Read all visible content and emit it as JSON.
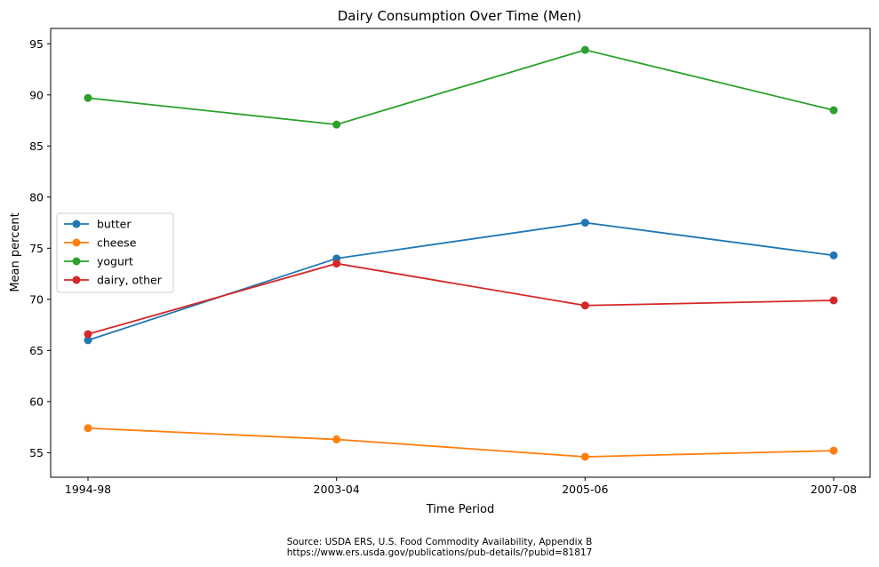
{
  "chart_data": {
    "type": "line",
    "title": "Dairy Consumption Over Time (Men)",
    "xlabel": "Time Period",
    "ylabel": "Mean percent",
    "categories": [
      "1994-98",
      "2003-04",
      "2005-06",
      "2007-08"
    ],
    "yticks": [
      55,
      60,
      65,
      70,
      75,
      80,
      85,
      90,
      95
    ],
    "ylim": [
      52.6,
      96.5
    ],
    "grid": false,
    "legend_position": "center-left",
    "series": [
      {
        "name": "butter",
        "color": "#1f77b4",
        "values": [
          66.0,
          74.0,
          77.5,
          74.3
        ]
      },
      {
        "name": "cheese",
        "color": "#ff7f0e",
        "values": [
          57.4,
          56.3,
          54.6,
          55.2
        ]
      },
      {
        "name": "yogurt",
        "color": "#2ca02c",
        "values": [
          89.7,
          87.1,
          94.4,
          88.5
        ]
      },
      {
        "name": "dairy, other",
        "color": "#d62728",
        "values": [
          66.6,
          73.5,
          69.4,
          69.9
        ]
      }
    ]
  },
  "source": {
    "line1": "Source: USDA ERS, U.S. Food Commodity Availability, Appendix B",
    "line2": "https://www.ers.usda.gov/publications/pub-details/?pubid=81817"
  }
}
